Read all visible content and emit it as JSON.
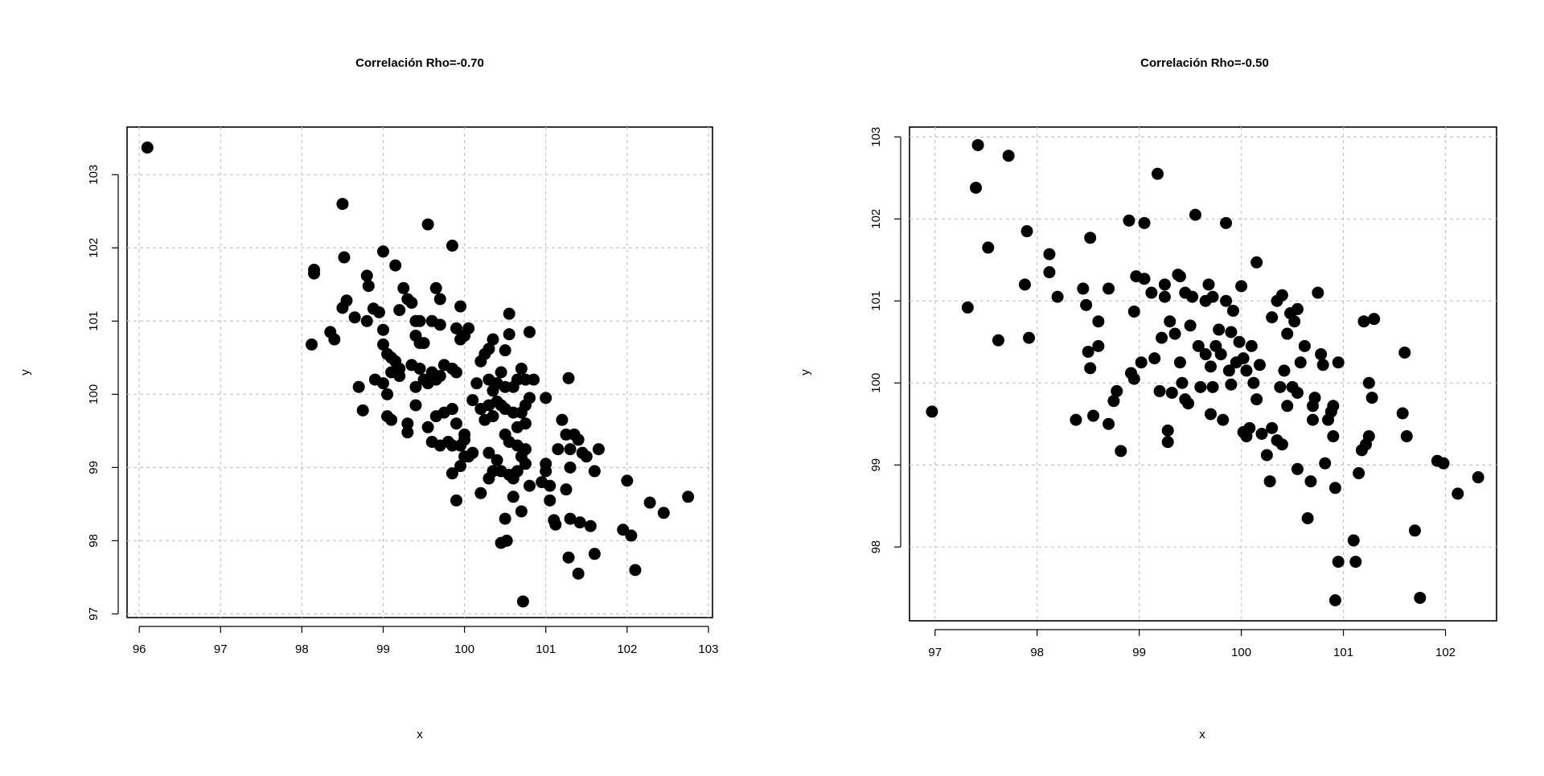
{
  "chart_data": [
    {
      "type": "scatter",
      "title": "Correlación Rho=-0.70",
      "xlabel": "x",
      "ylabel": "y",
      "xlim": [
        95.85,
        103.05
      ],
      "ylim": [
        96.95,
        103.65
      ],
      "xticks": [
        96,
        97,
        98,
        99,
        100,
        101,
        102,
        103
      ],
      "yticks": [
        97,
        98,
        99,
        100,
        101,
        102,
        103
      ],
      "grid": true,
      "points": [
        [
          96.1,
          103.37
        ],
        [
          98.15,
          101.7
        ],
        [
          98.15,
          101.65
        ],
        [
          98.5,
          102.6
        ],
        [
          98.52,
          101.87
        ],
        [
          98.55,
          101.28
        ],
        [
          98.5,
          101.18
        ],
        [
          98.35,
          100.85
        ],
        [
          98.4,
          100.75
        ],
        [
          98.12,
          100.68
        ],
        [
          98.65,
          101.05
        ],
        [
          98.8,
          101.62
        ],
        [
          98.82,
          101.48
        ],
        [
          98.8,
          101.0
        ],
        [
          98.88,
          101.17
        ],
        [
          98.95,
          101.12
        ],
        [
          99.0,
          101.95
        ],
        [
          99.15,
          101.76
        ],
        [
          99.25,
          101.45
        ],
        [
          99.3,
          101.3
        ],
        [
          99.2,
          101.15
        ],
        [
          99.35,
          101.25
        ],
        [
          99.4,
          101.0
        ],
        [
          99.45,
          101.0
        ],
        [
          99.55,
          102.32
        ],
        [
          99.65,
          101.45
        ],
        [
          99.7,
          101.3
        ],
        [
          99.85,
          102.03
        ],
        [
          99.95,
          101.2
        ],
        [
          99.6,
          101.0
        ],
        [
          99.7,
          100.95
        ],
        [
          99.9,
          100.9
        ],
        [
          100.05,
          100.9
        ],
        [
          100.0,
          100.8
        ],
        [
          99.95,
          100.75
        ],
        [
          99.45,
          100.7
        ],
        [
          99.5,
          100.7
        ],
        [
          99.4,
          100.8
        ],
        [
          99.0,
          100.88
        ],
        [
          99.0,
          100.68
        ],
        [
          99.05,
          100.55
        ],
        [
          99.1,
          100.5
        ],
        [
          99.15,
          100.45
        ],
        [
          99.2,
          100.35
        ],
        [
          99.1,
          100.3
        ],
        [
          99.2,
          100.25
        ],
        [
          99.35,
          100.4
        ],
        [
          99.45,
          100.35
        ],
        [
          99.5,
          100.2
        ],
        [
          99.55,
          100.15
        ],
        [
          99.4,
          100.1
        ],
        [
          99.65,
          100.2
        ],
        [
          99.6,
          100.3
        ],
        [
          99.7,
          100.25
        ],
        [
          99.75,
          100.4
        ],
        [
          99.85,
          100.35
        ],
        [
          99.9,
          100.3
        ],
        [
          98.9,
          100.2
        ],
        [
          98.7,
          100.1
        ],
        [
          99.0,
          100.15
        ],
        [
          99.05,
          100.0
        ],
        [
          98.75,
          99.78
        ],
        [
          99.05,
          99.7
        ],
        [
          99.1,
          99.65
        ],
        [
          99.3,
          99.6
        ],
        [
          99.3,
          99.48
        ],
        [
          99.4,
          99.85
        ],
        [
          99.55,
          99.55
        ],
        [
          99.65,
          99.7
        ],
        [
          99.75,
          99.75
        ],
        [
          99.85,
          99.8
        ],
        [
          99.9,
          99.6
        ],
        [
          99.8,
          99.35
        ],
        [
          99.6,
          99.35
        ],
        [
          99.7,
          99.3
        ],
        [
          99.85,
          99.3
        ],
        [
          99.95,
          99.3
        ],
        [
          100.0,
          99.45
        ],
        [
          100.0,
          99.38
        ],
        [
          100.0,
          99.15
        ],
        [
          100.05,
          99.15
        ],
        [
          100.1,
          99.2
        ],
        [
          99.95,
          99.02
        ],
        [
          99.85,
          98.92
        ],
        [
          99.9,
          98.55
        ],
        [
          100.1,
          99.92
        ],
        [
          100.15,
          100.15
        ],
        [
          100.2,
          100.45
        ],
        [
          100.25,
          100.55
        ],
        [
          100.3,
          100.62
        ],
        [
          100.35,
          100.75
        ],
        [
          100.45,
          100.3
        ],
        [
          100.5,
          100.6
        ],
        [
          100.55,
          100.82
        ],
        [
          100.55,
          101.1
        ],
        [
          100.8,
          100.85
        ],
        [
          100.3,
          100.2
        ],
        [
          100.35,
          100.05
        ],
        [
          100.4,
          100.15
        ],
        [
          100.5,
          100.1
        ],
        [
          100.6,
          100.1
        ],
        [
          100.65,
          100.2
        ],
        [
          100.7,
          100.35
        ],
        [
          100.75,
          100.2
        ],
        [
          100.85,
          100.2
        ],
        [
          100.8,
          99.95
        ],
        [
          100.75,
          99.85
        ],
        [
          100.7,
          99.75
        ],
        [
          100.6,
          99.75
        ],
        [
          100.5,
          99.8
        ],
        [
          100.45,
          99.85
        ],
        [
          100.4,
          99.9
        ],
        [
          100.3,
          99.85
        ],
        [
          100.2,
          99.8
        ],
        [
          100.25,
          99.65
        ],
        [
          100.35,
          99.7
        ],
        [
          100.5,
          99.45
        ],
        [
          100.55,
          99.35
        ],
        [
          100.65,
          99.55
        ],
        [
          100.75,
          99.6
        ],
        [
          100.65,
          99.3
        ],
        [
          100.7,
          99.15
        ],
        [
          100.75,
          99.25
        ],
        [
          100.4,
          99.1
        ],
        [
          100.3,
          99.2
        ],
        [
          100.35,
          98.95
        ],
        [
          100.3,
          98.85
        ],
        [
          100.2,
          98.65
        ],
        [
          100.45,
          98.95
        ],
        [
          100.55,
          98.9
        ],
        [
          100.6,
          98.85
        ],
        [
          100.65,
          98.95
        ],
        [
          100.75,
          99.05
        ],
        [
          100.8,
          98.75
        ],
        [
          100.6,
          98.6
        ],
        [
          100.5,
          98.3
        ],
        [
          100.7,
          98.4
        ],
        [
          100.45,
          97.97
        ],
        [
          100.52,
          98.0
        ],
        [
          100.72,
          97.17
        ],
        [
          101.0,
          99.95
        ],
        [
          100.95,
          98.8
        ],
        [
          101.0,
          98.95
        ],
        [
          101.0,
          99.05
        ],
        [
          101.05,
          98.75
        ],
        [
          101.05,
          98.55
        ],
        [
          101.1,
          98.28
        ],
        [
          101.12,
          98.22
        ],
        [
          101.15,
          99.25
        ],
        [
          101.2,
          99.65
        ],
        [
          101.25,
          99.45
        ],
        [
          101.28,
          100.22
        ],
        [
          101.3,
          99.25
        ],
        [
          101.35,
          99.45
        ],
        [
          101.4,
          99.38
        ],
        [
          101.45,
          99.2
        ],
        [
          101.5,
          99.15
        ],
        [
          101.3,
          99.0
        ],
        [
          101.25,
          98.7
        ],
        [
          101.3,
          98.3
        ],
        [
          101.42,
          98.25
        ],
        [
          101.55,
          98.2
        ],
        [
          101.28,
          97.77
        ],
        [
          101.4,
          97.55
        ],
        [
          101.6,
          97.82
        ],
        [
          101.6,
          98.95
        ],
        [
          101.65,
          99.25
        ],
        [
          101.95,
          98.15
        ],
        [
          102.0,
          98.82
        ],
        [
          102.05,
          98.07
        ],
        [
          102.1,
          97.6
        ],
        [
          102.28,
          98.52
        ],
        [
          102.45,
          98.38
        ],
        [
          102.75,
          98.6
        ]
      ]
    },
    {
      "type": "scatter",
      "title": "Correlación Rho=-0.50",
      "xlabel": "x",
      "ylabel": "y",
      "xlim": [
        96.75,
        102.5
      ],
      "ylim": [
        97.1,
        103.12
      ],
      "xticks": [
        97,
        98,
        99,
        100,
        101,
        102
      ],
      "yticks": [
        98,
        99,
        100,
        101,
        102,
        103
      ],
      "grid": true,
      "points": [
        [
          96.97,
          99.65
        ],
        [
          97.32,
          100.92
        ],
        [
          97.4,
          102.38
        ],
        [
          97.42,
          102.9
        ],
        [
          97.52,
          101.65
        ],
        [
          97.62,
          100.52
        ],
        [
          97.72,
          102.77
        ],
        [
          97.88,
          101.2
        ],
        [
          97.9,
          101.85
        ],
        [
          97.92,
          100.55
        ],
        [
          98.12,
          101.57
        ],
        [
          98.12,
          101.35
        ],
        [
          98.2,
          101.05
        ],
        [
          98.38,
          99.55
        ],
        [
          98.45,
          101.15
        ],
        [
          98.48,
          100.95
        ],
        [
          98.5,
          100.38
        ],
        [
          98.52,
          100.18
        ],
        [
          98.52,
          101.77
        ],
        [
          98.55,
          99.6
        ],
        [
          98.6,
          100.75
        ],
        [
          98.6,
          100.45
        ],
        [
          98.7,
          101.15
        ],
        [
          98.7,
          99.5
        ],
        [
          98.75,
          99.78
        ],
        [
          98.78,
          99.9
        ],
        [
          98.82,
          99.17
        ],
        [
          98.9,
          101.98
        ],
        [
          98.92,
          100.12
        ],
        [
          98.95,
          100.05
        ],
        [
          98.95,
          100.87
        ],
        [
          98.97,
          101.3
        ],
        [
          99.02,
          100.25
        ],
        [
          99.05,
          101.95
        ],
        [
          99.05,
          101.27
        ],
        [
          99.12,
          101.1
        ],
        [
          99.15,
          100.3
        ],
        [
          99.18,
          102.55
        ],
        [
          99.2,
          99.9
        ],
        [
          99.22,
          100.55
        ],
        [
          99.25,
          101.05
        ],
        [
          99.25,
          101.2
        ],
        [
          99.28,
          99.42
        ],
        [
          99.28,
          99.28
        ],
        [
          99.3,
          100.75
        ],
        [
          99.32,
          99.88
        ],
        [
          99.35,
          100.6
        ],
        [
          99.38,
          101.32
        ],
        [
          99.4,
          101.3
        ],
        [
          99.4,
          100.25
        ],
        [
          99.42,
          100.0
        ],
        [
          99.45,
          99.8
        ],
        [
          99.45,
          101.1
        ],
        [
          99.48,
          99.75
        ],
        [
          99.5,
          100.7
        ],
        [
          99.52,
          101.05
        ],
        [
          99.55,
          102.05
        ],
        [
          99.58,
          100.45
        ],
        [
          99.6,
          99.95
        ],
        [
          99.65,
          100.35
        ],
        [
          99.65,
          101.0
        ],
        [
          99.68,
          101.2
        ],
        [
          99.7,
          100.2
        ],
        [
          99.7,
          99.62
        ],
        [
          99.72,
          99.95
        ],
        [
          99.72,
          101.05
        ],
        [
          99.75,
          100.45
        ],
        [
          99.78,
          100.65
        ],
        [
          99.8,
          100.35
        ],
        [
          99.82,
          99.55
        ],
        [
          99.85,
          101.0
        ],
        [
          99.85,
          101.95
        ],
        [
          99.88,
          100.15
        ],
        [
          99.9,
          99.98
        ],
        [
          99.9,
          100.62
        ],
        [
          99.92,
          100.88
        ],
        [
          99.95,
          100.25
        ],
        [
          99.98,
          100.5
        ],
        [
          100.0,
          101.18
        ],
        [
          100.02,
          100.3
        ],
        [
          100.02,
          99.4
        ],
        [
          100.05,
          99.35
        ],
        [
          100.05,
          100.15
        ],
        [
          100.08,
          99.45
        ],
        [
          100.1,
          100.45
        ],
        [
          100.12,
          100.0
        ],
        [
          100.15,
          99.8
        ],
        [
          100.15,
          101.47
        ],
        [
          100.18,
          100.22
        ],
        [
          100.2,
          99.38
        ],
        [
          100.25,
          99.12
        ],
        [
          100.28,
          98.8
        ],
        [
          100.3,
          99.45
        ],
        [
          100.3,
          100.8
        ],
        [
          100.35,
          101.0
        ],
        [
          100.35,
          99.3
        ],
        [
          100.38,
          99.95
        ],
        [
          100.4,
          101.07
        ],
        [
          100.4,
          99.25
        ],
        [
          100.42,
          100.15
        ],
        [
          100.45,
          99.72
        ],
        [
          100.45,
          100.6
        ],
        [
          100.48,
          100.85
        ],
        [
          100.5,
          99.95
        ],
        [
          100.52,
          100.75
        ],
        [
          100.55,
          98.95
        ],
        [
          100.55,
          100.9
        ],
        [
          100.55,
          99.88
        ],
        [
          100.58,
          100.25
        ],
        [
          100.62,
          100.45
        ],
        [
          100.65,
          98.35
        ],
        [
          100.68,
          98.8
        ],
        [
          100.7,
          99.72
        ],
        [
          100.7,
          99.55
        ],
        [
          100.72,
          99.82
        ],
        [
          100.75,
          101.1
        ],
        [
          100.78,
          100.35
        ],
        [
          100.8,
          100.22
        ],
        [
          100.82,
          99.02
        ],
        [
          100.85,
          99.55
        ],
        [
          100.88,
          99.65
        ],
        [
          100.9,
          99.72
        ],
        [
          100.9,
          99.35
        ],
        [
          100.92,
          98.72
        ],
        [
          100.95,
          100.25
        ],
        [
          100.95,
          97.82
        ],
        [
          100.92,
          97.35
        ],
        [
          101.1,
          98.08
        ],
        [
          101.12,
          97.82
        ],
        [
          101.15,
          98.9
        ],
        [
          101.18,
          99.18
        ],
        [
          101.2,
          100.75
        ],
        [
          101.22,
          99.25
        ],
        [
          101.25,
          100.0
        ],
        [
          101.25,
          99.35
        ],
        [
          101.28,
          99.82
        ],
        [
          101.3,
          100.78
        ],
        [
          101.58,
          99.63
        ],
        [
          101.6,
          100.37
        ],
        [
          101.62,
          99.35
        ],
        [
          101.7,
          98.2
        ],
        [
          101.75,
          97.38
        ],
        [
          101.92,
          99.05
        ],
        [
          101.98,
          99.02
        ],
        [
          102.12,
          98.65
        ],
        [
          102.32,
          98.85
        ]
      ]
    }
  ]
}
